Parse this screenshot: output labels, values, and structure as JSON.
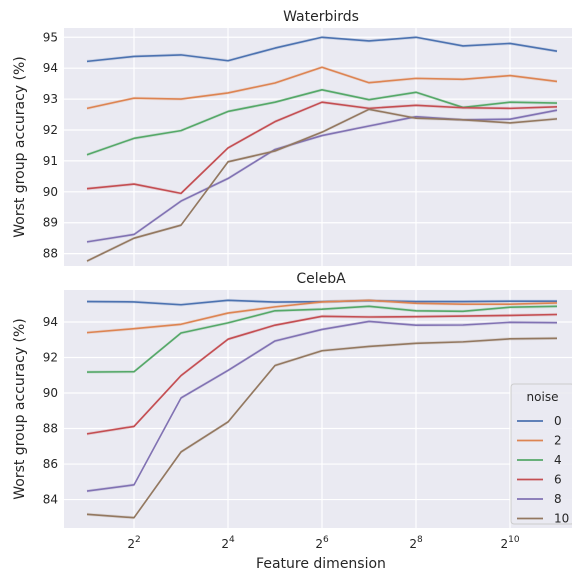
{
  "chart_data": [
    {
      "type": "line",
      "title": "Waterbirds",
      "ylabel": "Worst group accuracy (%)",
      "xlabel": "",
      "x_scale": "log2",
      "x": [
        2,
        4,
        8,
        16,
        32,
        64,
        128,
        256,
        512,
        1024,
        2048
      ],
      "ylim": [
        87.6,
        95.3
      ],
      "yticks": [
        88,
        89,
        90,
        91,
        92,
        93,
        94,
        95
      ],
      "grid": true,
      "legend": "none",
      "series": [
        {
          "name": "0",
          "color": "#4c72b0",
          "values": [
            94.22,
            94.38,
            94.43,
            94.24,
            94.65,
            95.0,
            94.88,
            95.0,
            94.72,
            94.8,
            94.55
          ]
        },
        {
          "name": "2",
          "color": "#dd8452",
          "values": [
            92.7,
            93.03,
            93.0,
            93.2,
            93.52,
            94.03,
            93.53,
            93.67,
            93.64,
            93.76,
            93.57
          ]
        },
        {
          "name": "4",
          "color": "#55a868",
          "values": [
            91.2,
            91.73,
            91.98,
            92.6,
            92.9,
            93.3,
            92.98,
            93.22,
            92.73,
            92.9,
            92.87
          ]
        },
        {
          "name": "6",
          "color": "#c44e52",
          "values": [
            90.1,
            90.25,
            89.95,
            91.42,
            92.27,
            92.9,
            92.7,
            92.8,
            92.72,
            92.7,
            92.75
          ]
        },
        {
          "name": "8",
          "color": "#8172b3",
          "values": [
            88.38,
            88.62,
            89.7,
            90.43,
            91.37,
            91.82,
            92.13,
            92.43,
            92.33,
            92.35,
            92.64
          ]
        },
        {
          "name": "10",
          "color": "#937860",
          "values": [
            87.76,
            88.5,
            88.92,
            90.97,
            91.32,
            91.93,
            92.67,
            92.38,
            92.33,
            92.23,
            92.36
          ]
        }
      ]
    },
    {
      "type": "line",
      "title": "CelebA",
      "ylabel": "Worst group accuracy (%)",
      "xlabel": "Feature dimension",
      "x_scale": "log2",
      "x": [
        2,
        4,
        8,
        16,
        32,
        64,
        128,
        256,
        512,
        1024,
        2048
      ],
      "xticks": [
        4,
        16,
        64,
        256,
        1024
      ],
      "xtick_base": "2",
      "xtick_exponents": [
        "2",
        "4",
        "6",
        "8",
        "10"
      ],
      "ylim": [
        82.4,
        95.8
      ],
      "yticks": [
        84,
        86,
        88,
        90,
        92,
        94
      ],
      "grid": true,
      "legend": "lower-right",
      "legend_title": "noise",
      "series": [
        {
          "name": "0",
          "color": "#4c72b0",
          "values": [
            95.15,
            95.13,
            94.97,
            95.22,
            95.12,
            95.14,
            95.2,
            95.15,
            95.15,
            95.17,
            95.17
          ]
        },
        {
          "name": "2",
          "color": "#dd8452",
          "values": [
            93.4,
            93.62,
            93.87,
            94.5,
            94.85,
            95.13,
            95.22,
            95.05,
            95.0,
            95.0,
            95.07
          ]
        },
        {
          "name": "4",
          "color": "#55a868",
          "values": [
            91.18,
            91.2,
            93.38,
            93.95,
            94.63,
            94.72,
            94.88,
            94.63,
            94.6,
            94.83,
            94.88
          ]
        },
        {
          "name": "6",
          "color": "#c44e52",
          "values": [
            87.7,
            88.12,
            90.98,
            93.03,
            93.82,
            94.32,
            94.28,
            94.3,
            94.33,
            94.37,
            94.42
          ]
        },
        {
          "name": "8",
          "color": "#8172b3",
          "values": [
            84.48,
            84.83,
            89.72,
            91.27,
            92.93,
            93.58,
            94.03,
            93.82,
            93.83,
            93.98,
            93.96
          ]
        },
        {
          "name": "10",
          "color": "#937860",
          "values": [
            83.17,
            82.98,
            86.68,
            88.37,
            91.55,
            92.38,
            92.62,
            92.8,
            92.88,
            93.05,
            93.08
          ]
        }
      ]
    }
  ]
}
